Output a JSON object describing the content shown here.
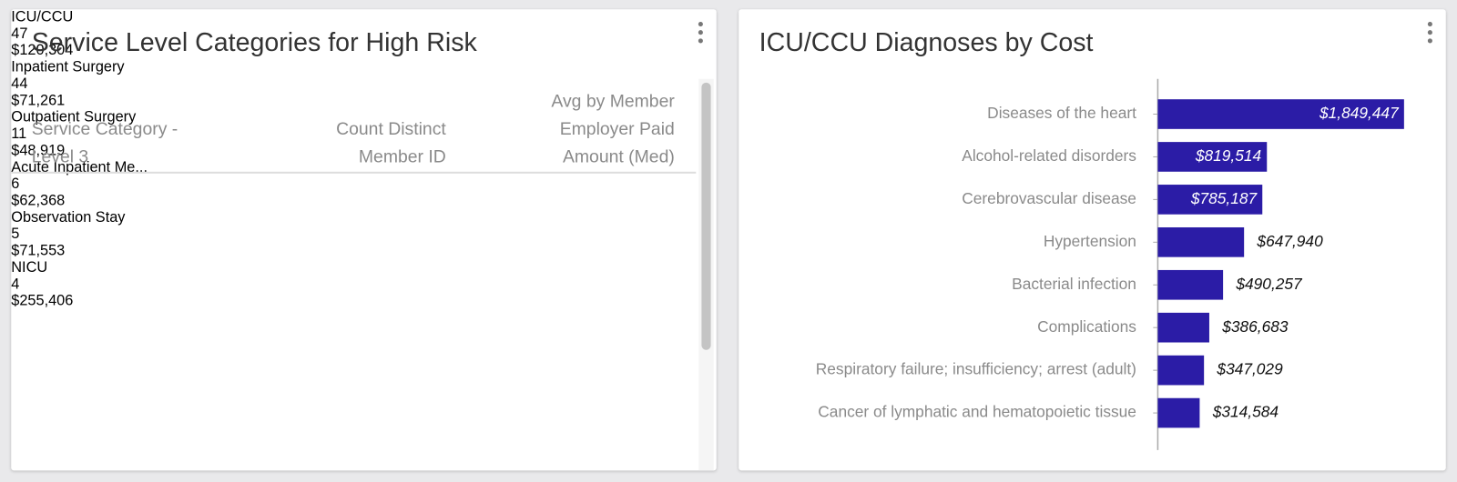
{
  "table_panel": {
    "title": "Service Level Categories for High Risk",
    "columns": [
      "Service Category - Level 3",
      "Count Distinct Member ID",
      "Avg by Member Employer Paid Amount (Med)"
    ],
    "bar_colors": [
      "#c0bae4",
      "#d5d2ea"
    ],
    "rows": [
      [
        "ICU/CCU",
        47,
        {
          "value": 120304,
          "label": "$120,304"
        }
      ],
      [
        "Inpatient Surgery",
        44,
        {
          "value": 71261,
          "label": "$71,261"
        }
      ],
      [
        "Outpatient Surgery",
        11,
        {
          "value": 48919,
          "label": "$48,919"
        }
      ],
      [
        "Acute Inpatient Me...",
        6,
        {
          "value": 62368,
          "label": "$62,368"
        }
      ],
      [
        "Observation Stay",
        5,
        {
          "value": 71553,
          "label": "$71,553"
        }
      ],
      [
        "NICU",
        4,
        {
          "value": 255406,
          "label": "$255,406"
        }
      ]
    ]
  },
  "chart_data": {
    "type": "bar",
    "orientation": "horizontal",
    "title": "ICU/CCU Diagnoses by Cost",
    "categories": [
      "Diseases of the heart",
      "Alcohol-related disorders",
      "Cerebrovascular disease",
      "Hypertension",
      "Bacterial infection",
      "Complications",
      "Respiratory failure; insufficiency; arrest (adult)",
      "Cancer of lymphatic and hematopoietic tissue"
    ],
    "values": [
      1849447,
      819514,
      785187,
      647940,
      490257,
      386683,
      347029,
      314584
    ],
    "value_labels": [
      "$1,849,447",
      "$819,514",
      "$785,187",
      "$647,940",
      "$490,257",
      "$386,683",
      "$347,029",
      "$314,584"
    ],
    "color": "#2b1ca6",
    "xlim": [
      0,
      2000000
    ]
  }
}
